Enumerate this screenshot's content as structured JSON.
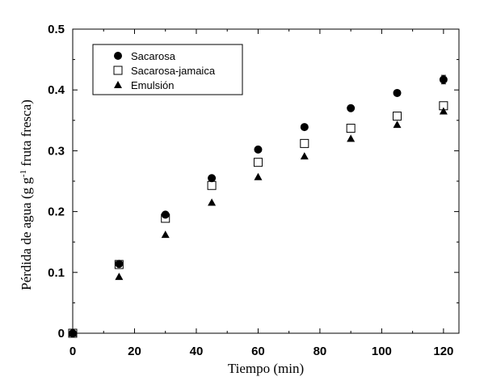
{
  "chart_data": {
    "type": "scatter",
    "xlabel": "Tiempo (min)",
    "ylabel_main": "Pérdida de agua (g g",
    "ylabel_sup": "-1",
    "ylabel_end": " fruta fresca)",
    "xlim": [
      0,
      125
    ],
    "ylim": [
      0,
      0.5
    ],
    "xticks": [
      0,
      20,
      40,
      60,
      80,
      100,
      120
    ],
    "yticks": [
      0,
      0.1,
      0.2,
      0.3,
      0.4,
      0.5
    ],
    "xtick_labels": [
      "0",
      "20",
      "40",
      "60",
      "80",
      "100",
      "120"
    ],
    "ytick_labels": [
      "0",
      "0.1",
      "0.2",
      "0.3",
      "0.4",
      "0.5"
    ],
    "grid": false,
    "legend_position": "top-left",
    "series": [
      {
        "name": "Sacarosa",
        "marker": "filled-circle",
        "x": [
          0,
          15,
          30,
          45,
          60,
          75,
          90,
          105,
          120
        ],
        "y": [
          0,
          0.114,
          0.195,
          0.255,
          0.302,
          0.339,
          0.37,
          0.395,
          0.417
        ],
        "error": [
          0,
          0.004,
          0.004,
          0,
          0,
          0,
          0,
          0,
          0.007
        ]
      },
      {
        "name": "Sacarosa-jamaica",
        "marker": "open-square",
        "x": [
          0,
          15,
          30,
          45,
          60,
          75,
          90,
          105,
          120
        ],
        "y": [
          0,
          0.113,
          0.189,
          0.243,
          0.281,
          0.312,
          0.337,
          0.357,
          0.374
        ],
        "error": [
          0,
          0,
          0,
          0,
          0,
          0,
          0,
          0,
          0
        ]
      },
      {
        "name": "Emulsión",
        "marker": "filled-triangle",
        "x": [
          0,
          15,
          30,
          45,
          60,
          75,
          90,
          105,
          120
        ],
        "y": [
          0,
          0.093,
          0.162,
          0.215,
          0.257,
          0.291,
          0.32,
          0.343,
          0.365
        ],
        "error": [
          0,
          0,
          0,
          0,
          0,
          0,
          0,
          0,
          0
        ]
      }
    ]
  }
}
